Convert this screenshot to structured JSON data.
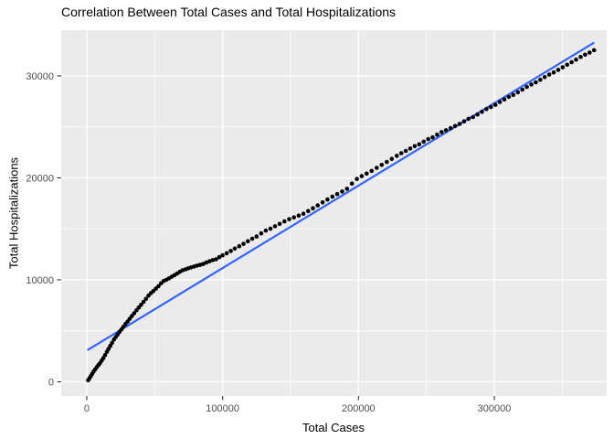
{
  "chart_data": {
    "type": "scatter",
    "title": "Correlation Between Total Cases and Total Hospitalizations",
    "xlabel": "Total Cases",
    "ylabel": "Total Hospitalizations",
    "x_ticks": [
      0,
      100000,
      200000,
      300000
    ],
    "x_tick_labels": [
      "0",
      "100000",
      "200000",
      "300000"
    ],
    "y_ticks": [
      0,
      10000,
      20000,
      30000
    ],
    "y_tick_labels": [
      "0",
      "10000",
      "20000",
      "30000"
    ],
    "x_minor_ticks": [
      50000,
      150000,
      250000,
      350000
    ],
    "y_minor_ticks": [
      5000,
      15000,
      25000
    ],
    "xlim": [
      -18800,
      382700
    ],
    "ylim": [
      -1390,
      34480
    ],
    "grid": true,
    "legend": false,
    "panel_bg": "#EBEBEB",
    "grid_color": "#FFFFFF",
    "point_color": "#000000",
    "tick_label_color": "#4D4D4D",
    "tick_mark_color": "#333333",
    "trend_line": {
      "color": "#3366FF",
      "x1": 1000,
      "y1": 3150,
      "x2": 373000,
      "y2": 33230
    },
    "points": [
      [
        1000,
        150
      ],
      [
        2000,
        350
      ],
      [
        3000,
        560
      ],
      [
        4000,
        780
      ],
      [
        5000,
        1000
      ],
      [
        6200,
        1220
      ],
      [
        7400,
        1440
      ],
      [
        8600,
        1650
      ],
      [
        9800,
        1840
      ],
      [
        11000,
        2080
      ],
      [
        12200,
        2330
      ],
      [
        13500,
        2630
      ],
      [
        14800,
        2950
      ],
      [
        16000,
        3220
      ],
      [
        17300,
        3520
      ],
      [
        18600,
        3820
      ],
      [
        20000,
        4150
      ],
      [
        21400,
        4400
      ],
      [
        22800,
        4650
      ],
      [
        24200,
        4910
      ],
      [
        25600,
        5150
      ],
      [
        27000,
        5400
      ],
      [
        28500,
        5680
      ],
      [
        30000,
        5900
      ],
      [
        31600,
        6180
      ],
      [
        33200,
        6450
      ],
      [
        34900,
        6730
      ],
      [
        36600,
        7020
      ],
      [
        38300,
        7290
      ],
      [
        40000,
        7550
      ],
      [
        41800,
        7840
      ],
      [
        43600,
        8130
      ],
      [
        45400,
        8460
      ],
      [
        47200,
        8700
      ],
      [
        49000,
        8900
      ],
      [
        50900,
        9140
      ],
      [
        52800,
        9380
      ],
      [
        54700,
        9660
      ],
      [
        56600,
        9880
      ],
      [
        58500,
        10000
      ],
      [
        60500,
        10140
      ],
      [
        62500,
        10300
      ],
      [
        64500,
        10460
      ],
      [
        66500,
        10620
      ],
      [
        68500,
        10790
      ],
      [
        70500,
        10940
      ],
      [
        72600,
        11030
      ],
      [
        74700,
        11130
      ],
      [
        76800,
        11220
      ],
      [
        79000,
        11310
      ],
      [
        81200,
        11400
      ],
      [
        83400,
        11470
      ],
      [
        85700,
        11560
      ],
      [
        88000,
        11690
      ],
      [
        90300,
        11820
      ],
      [
        92700,
        11940
      ],
      [
        95100,
        12020
      ],
      [
        97500,
        12220
      ],
      [
        100000,
        12400
      ],
      [
        103000,
        12610
      ],
      [
        106000,
        12830
      ],
      [
        109000,
        13070
      ],
      [
        112200,
        13300
      ],
      [
        115400,
        13530
      ],
      [
        118600,
        13780
      ],
      [
        121800,
        14030
      ],
      [
        125000,
        14250
      ],
      [
        128400,
        14550
      ],
      [
        131800,
        14830
      ],
      [
        135200,
        15010
      ],
      [
        138600,
        15250
      ],
      [
        142000,
        15490
      ],
      [
        145500,
        15730
      ],
      [
        149000,
        15940
      ],
      [
        152500,
        16120
      ],
      [
        156000,
        16300
      ],
      [
        159500,
        16480
      ],
      [
        163000,
        16740
      ],
      [
        166500,
        17020
      ],
      [
        170000,
        17300
      ],
      [
        173600,
        17590
      ],
      [
        177200,
        17880
      ],
      [
        180800,
        18160
      ],
      [
        184400,
        18410
      ],
      [
        188000,
        18660
      ],
      [
        191600,
        18930
      ],
      [
        195200,
        19440
      ],
      [
        198800,
        19890
      ],
      [
        202400,
        20170
      ],
      [
        206000,
        20420
      ],
      [
        209700,
        20680
      ],
      [
        213400,
        20980
      ],
      [
        217100,
        21270
      ],
      [
        220800,
        21560
      ],
      [
        224500,
        21860
      ],
      [
        228200,
        22160
      ],
      [
        231500,
        22420
      ],
      [
        234800,
        22640
      ],
      [
        238100,
        22880
      ],
      [
        241400,
        23110
      ],
      [
        244700,
        23290
      ],
      [
        248000,
        23550
      ],
      [
        251300,
        23800
      ],
      [
        254600,
        23970
      ],
      [
        257900,
        24230
      ],
      [
        261200,
        24490
      ],
      [
        264500,
        24670
      ],
      [
        267800,
        24870
      ],
      [
        271100,
        25080
      ],
      [
        274400,
        25290
      ],
      [
        277700,
        25540
      ],
      [
        281000,
        25790
      ],
      [
        284300,
        25960
      ],
      [
        287600,
        26210
      ],
      [
        290900,
        26470
      ],
      [
        294200,
        26740
      ],
      [
        297500,
        26950
      ],
      [
        300800,
        27160
      ],
      [
        304100,
        27440
      ],
      [
        307400,
        27690
      ],
      [
        310700,
        27940
      ],
      [
        314000,
        28140
      ],
      [
        317300,
        28390
      ],
      [
        320600,
        28650
      ],
      [
        323900,
        28920
      ],
      [
        327200,
        29150
      ],
      [
        330500,
        29370
      ],
      [
        333800,
        29620
      ],
      [
        337100,
        29880
      ],
      [
        340400,
        30130
      ],
      [
        343700,
        30330
      ],
      [
        347000,
        30590
      ],
      [
        350300,
        30840
      ],
      [
        353600,
        31090
      ],
      [
        356900,
        31340
      ],
      [
        360200,
        31590
      ],
      [
        363500,
        31850
      ],
      [
        366800,
        32080
      ],
      [
        370100,
        32280
      ],
      [
        373400,
        32520
      ]
    ]
  }
}
